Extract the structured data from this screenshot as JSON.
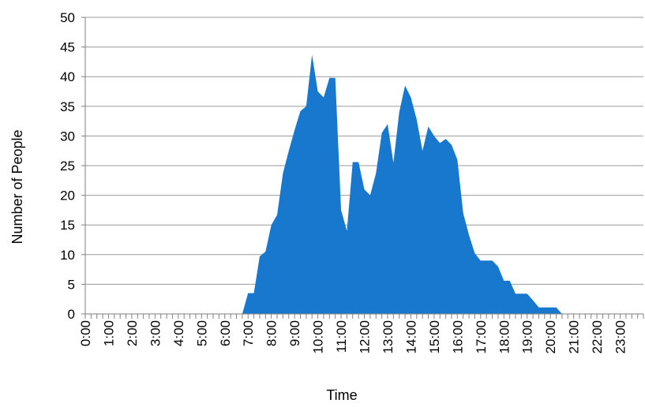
{
  "chart_data": {
    "type": "area",
    "title": "",
    "xlabel": "Time",
    "ylabel": "Number of People",
    "ylim": [
      0,
      50
    ],
    "yticks": [
      "0",
      "5",
      "10",
      "15",
      "20",
      "25",
      "30",
      "35",
      "40",
      "45",
      "50"
    ],
    "xticks": [
      "0:00",
      "1:00",
      "2:00",
      "3:00",
      "4:00",
      "5:00",
      "6:00",
      "7:00",
      "8:00",
      "9:00",
      "10:00",
      "11:00",
      "12:00",
      "13:00",
      "14:00",
      "15:00",
      "16:00",
      "17:00",
      "18:00",
      "19:00",
      "20:00",
      "21:00",
      "22:00",
      "23:00"
    ],
    "grid": true,
    "color": "#1878CE",
    "x_hours": [
      6.75,
      7.0,
      7.25,
      7.5,
      7.75,
      8.0,
      8.25,
      8.5,
      8.75,
      9.0,
      9.25,
      9.5,
      9.75,
      10.0,
      10.25,
      10.5,
      10.75,
      11.0,
      11.25,
      11.5,
      11.75,
      12.0,
      12.25,
      12.5,
      12.75,
      13.0,
      13.25,
      13.5,
      13.75,
      14.0,
      14.25,
      14.5,
      14.75,
      15.0,
      15.25,
      15.5,
      15.75,
      16.0,
      16.25,
      16.5,
      16.75,
      17.0,
      17.25,
      17.5,
      17.75,
      18.0,
      18.25,
      18.5,
      18.75,
      19.0,
      19.25,
      19.5,
      19.75,
      20.0,
      20.25,
      20.5
    ],
    "values": [
      0,
      3.5,
      3.5,
      9.7,
      10.5,
      15,
      16.7,
      23.7,
      27.5,
      31,
      34.2,
      35,
      43.7,
      37.5,
      36.5,
      39.8,
      39.8,
      17.5,
      14,
      25.6,
      25.6,
      21,
      20,
      23.7,
      30.5,
      32,
      25.5,
      34,
      38.5,
      36.5,
      32.8,
      27.5,
      31.6,
      30,
      28.8,
      29.5,
      28.5,
      26,
      17,
      13.3,
      10.2,
      9,
      9,
      9,
      8,
      5.6,
      5.6,
      3.4,
      3.4,
      3.4,
      2.3,
      1.1,
      1.1,
      1.1,
      1.1,
      0
    ]
  }
}
